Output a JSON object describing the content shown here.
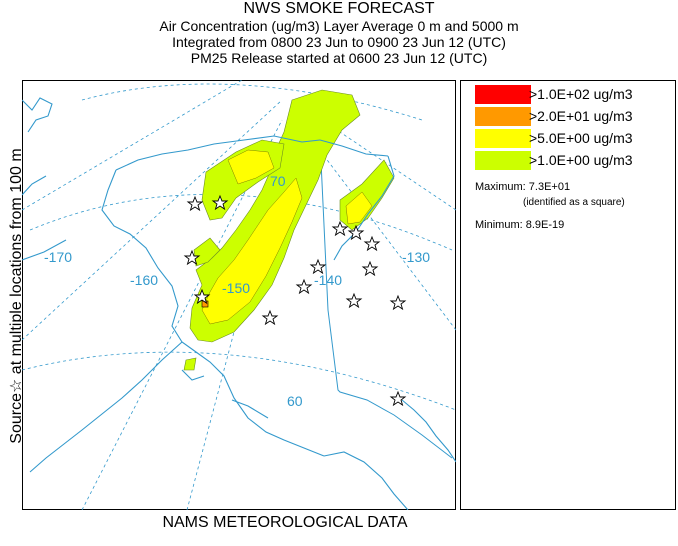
{
  "header": {
    "title": "NWS SMOKE FORECAST",
    "line2": "Air Concentration (ug/m3) Layer Average     0 m and  5000 m",
    "line3": "Integrated from 0800 23 Jun to 0900 23 Jun 12 (UTC)",
    "line4": "PM25 Release started at 0600 23 Jun 12 (UTC)"
  },
  "side_label": "Source☆ at multiple locations  from   100 m",
  "footer": "NAMS METEOROLOGICAL DATA",
  "map": {
    "longitude_labels": [
      "-170",
      "-160",
      "-150",
      "-140",
      "-130"
    ],
    "latitude_labels": [
      "70",
      "60"
    ]
  },
  "legend": {
    "items": [
      {
        "label": ">1.0E+02 ug/m3",
        "color": "#ff0000"
      },
      {
        "label": ">2.0E+01 ug/m3",
        "color": "#ff9900"
      },
      {
        "label": ">5.0E+00 ug/m3",
        "color": "#ffff00"
      },
      {
        "label": ">1.0E+00 ug/m3",
        "color": "#ccff00"
      }
    ],
    "maximum": "Maximum: 7.3E+01",
    "maximum_note": "(identified as a square)",
    "minimum": "Minimum: 8.9E-19"
  },
  "colors": {
    "coast": "#3399cc",
    "grid": "#3399cc",
    "smoke_low": "#ccff00",
    "smoke_mid": "#ffff00"
  }
}
